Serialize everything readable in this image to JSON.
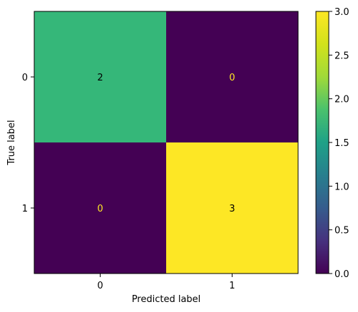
{
  "chart_data": {
    "type": "heatmap",
    "title": "",
    "xlabel": "Predicted label",
    "ylabel": "True label",
    "x_categories": [
      "0",
      "1"
    ],
    "y_categories": [
      "0",
      "1"
    ],
    "values": [
      [
        2,
        0
      ],
      [
        0,
        3
      ]
    ],
    "value_labels": [
      [
        "2",
        "0"
      ],
      [
        "0",
        "3"
      ]
    ],
    "colorbar": {
      "range": [
        0.0,
        3.0
      ],
      "ticks": [
        "0.0",
        "0.5",
        "1.0",
        "1.5",
        "2.0",
        "2.5",
        "3.0"
      ],
      "colormap": "viridis"
    },
    "cell_colors": [
      [
        "#35b779",
        "#440154"
      ],
      [
        "#440154",
        "#fde725"
      ]
    ],
    "text_colors": {
      "on_dark": "#fde725",
      "on_light": "#000000"
    }
  }
}
